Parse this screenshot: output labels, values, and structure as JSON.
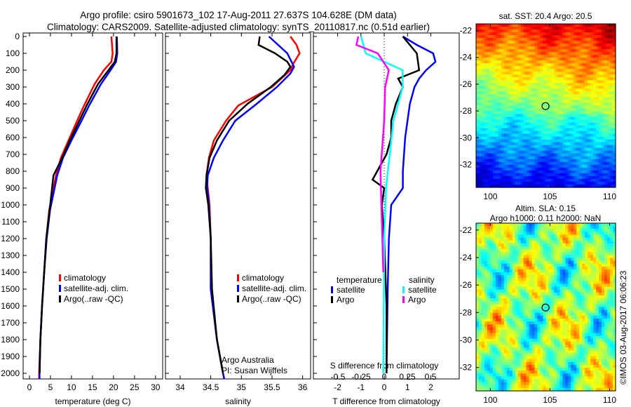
{
  "title_line1": "Argo profile: csiro 5901673_102 17-Aug-2011 27.637S 104.628E (DM data)",
  "title_line2": "Climatology: CARS2009. Satellite-adjusted climatology: synTS_20110817.nc (0.51d earlier)",
  "watermark": "©IMOS 03-Aug-2017 06:06:23",
  "credits": [
    "Argo Australia",
    "PI: Susan Wijffels"
  ],
  "colors": {
    "climatology": "#ff0000",
    "satellite": "#0000ff",
    "argo": "#000000",
    "sal_satellite": "#00ffff",
    "sal_argo": "#ff00ff"
  },
  "chart_data": [
    {
      "type": "line",
      "name": "temperature",
      "xlabel": "temperature (deg C)",
      "ylabel": "depth",
      "xlim": [
        -1.5,
        31.7
      ],
      "ylim": [
        2033,
        -21
      ],
      "xticks": [
        0,
        5,
        10,
        15,
        20,
        25,
        30
      ],
      "yticks": [
        0,
        100,
        200,
        300,
        400,
        500,
        600,
        700,
        800,
        900,
        1000,
        1100,
        1200,
        1300,
        1400,
        1500,
        1600,
        1700,
        1800,
        1900,
        2000
      ],
      "legend": [
        "climatology",
        "satellite-adj. clim.",
        "Argo(..raw -QC)"
      ],
      "legend_placement": "bottom-center",
      "series": [
        {
          "name": "climatology",
          "color": "#ff0000",
          "points": [
            [
              19.5,
              0
            ],
            [
              19.8,
              100
            ],
            [
              19.5,
              150
            ],
            [
              17.7,
              200
            ],
            [
              15.5,
              283
            ],
            [
              13,
              410
            ],
            [
              11,
              520
            ],
            [
              9.3,
              617
            ],
            [
              7.5,
              720
            ],
            [
              6.3,
              825
            ],
            [
              4.7,
              1030
            ],
            [
              4,
              1200
            ],
            [
              3.5,
              1400
            ],
            [
              3,
              1600
            ],
            [
              2.6,
              1800
            ],
            [
              2.3,
              2000
            ],
            [
              2.3,
              2033
            ]
          ]
        },
        {
          "name": "satellite-adj. clim.",
          "color": "#0000ff",
          "points": [
            [
              20.8,
              0
            ],
            [
              20.9,
              100
            ],
            [
              20.6,
              150
            ],
            [
              19.3,
              200
            ],
            [
              17,
              283
            ],
            [
              14.2,
              410
            ],
            [
              12,
              520
            ],
            [
              10,
              617
            ],
            [
              8,
              720
            ],
            [
              6.6,
              825
            ],
            [
              4.9,
              1030
            ],
            [
              4.1,
              1200
            ],
            [
              3.5,
              1400
            ],
            [
              3,
              1600
            ],
            [
              2.6,
              1800
            ],
            [
              2.4,
              2000
            ],
            [
              2.4,
              2033
            ]
          ]
        },
        {
          "name": "Argo(..raw -QC)",
          "color": "#000000",
          "points": [
            [
              20.7,
              0
            ],
            [
              20.7,
              100
            ],
            [
              20.3,
              150
            ],
            [
              18.8,
              200
            ],
            [
              16.3,
              283
            ],
            [
              13.6,
              410
            ],
            [
              11.5,
              520
            ],
            [
              9.6,
              617
            ],
            [
              7.8,
              720
            ],
            [
              5.7,
              825
            ],
            [
              4.8,
              1030
            ],
            [
              4,
              1200
            ],
            [
              3.5,
              1400
            ],
            [
              3,
              1600
            ],
            [
              2.6,
              1800
            ],
            [
              2.4,
              2000
            ]
          ]
        }
      ]
    },
    {
      "type": "line",
      "name": "salinity",
      "xlabel": "salinity",
      "xlim": [
        33.76,
        36.13
      ],
      "ylim": [
        2033,
        -21
      ],
      "xticks": [
        34,
        34.5,
        35,
        35.5,
        36
      ],
      "legend": [
        "climatology",
        "satellite-adj. clim.",
        "Argo(..raw -QC)"
      ],
      "legend_placement": "bottom-right",
      "series": [
        {
          "name": "climatology",
          "color": "#ff0000",
          "points": [
            [
              35.8,
              0
            ],
            [
              35.9,
              50
            ],
            [
              35.95,
              100
            ],
            [
              35.85,
              160
            ],
            [
              35.8,
              200
            ],
            [
              35.5,
              300
            ],
            [
              34.95,
              410
            ],
            [
              34.75,
              500
            ],
            [
              34.55,
              617
            ],
            [
              34.47,
              720
            ],
            [
              34.43,
              825
            ],
            [
              34.45,
              900
            ],
            [
              34.48,
              1000
            ],
            [
              34.5,
              1200
            ],
            [
              34.5,
              1500
            ],
            [
              34.6,
              1800
            ],
            [
              34.7,
              2000
            ],
            [
              34.72,
              2033
            ]
          ]
        },
        {
          "name": "satellite-adj. clim.",
          "color": "#0000ff",
          "points": [
            [
              35.45,
              0
            ],
            [
              35.6,
              50
            ],
            [
              35.75,
              100
            ],
            [
              35.86,
              180
            ],
            [
              35.8,
              220
            ],
            [
              35.58,
              300
            ],
            [
              35.25,
              400
            ],
            [
              34.9,
              500
            ],
            [
              34.7,
              617
            ],
            [
              34.55,
              720
            ],
            [
              34.45,
              825
            ],
            [
              34.44,
              900
            ],
            [
              34.47,
              1000
            ],
            [
              34.5,
              1200
            ],
            [
              34.5,
              1500
            ],
            [
              34.6,
              1800
            ],
            [
              34.7,
              2000
            ],
            [
              34.72,
              2033
            ]
          ]
        },
        {
          "name": "Argo(..raw -QC)",
          "color": "#000000",
          "points": [
            [
              35.3,
              0
            ],
            [
              35.28,
              50
            ],
            [
              35.55,
              100
            ],
            [
              35.75,
              150
            ],
            [
              35.8,
              180
            ],
            [
              35.7,
              230
            ],
            [
              35.48,
              300
            ],
            [
              35.1,
              400
            ],
            [
              34.8,
              500
            ],
            [
              34.6,
              617
            ],
            [
              34.48,
              720
            ],
            [
              34.43,
              825
            ],
            [
              34.42,
              900
            ],
            [
              34.46,
              1000
            ],
            [
              34.5,
              1200
            ],
            [
              34.52,
              1500
            ],
            [
              34.6,
              1800
            ],
            [
              34.7,
              2000
            ]
          ]
        }
      ]
    },
    {
      "type": "line",
      "name": "difference",
      "xlabel": "T difference from climatology",
      "x2label": "S difference from climatology",
      "xlim": [
        -3.04,
        3.22
      ],
      "ylim": [
        2033,
        -21
      ],
      "xticks": [
        -2,
        -1,
        0,
        1,
        2
      ],
      "x2ticks": [
        -0.5,
        -0.25,
        0,
        0.25,
        0.5
      ],
      "legend_headers": [
        "temperature",
        "salinity"
      ],
      "legend": [
        "satellite",
        "Argo",
        "satellite",
        "Argo"
      ],
      "legend_placement": "bottom-center",
      "series": [
        {
          "name": "temperature satellite",
          "axis": "T",
          "color": "#0000ff",
          "points": [
            [
              0.8,
              0
            ],
            [
              1.4,
              50
            ],
            [
              2.1,
              100
            ],
            [
              2.2,
              150
            ],
            [
              1.8,
              200
            ],
            [
              1.5,
              250
            ],
            [
              1.3,
              300
            ],
            [
              1.1,
              400
            ],
            [
              0.9,
              600
            ],
            [
              0.8,
              800
            ],
            [
              0.8,
              900
            ],
            [
              0.3,
              1000
            ],
            [
              0.2,
              1200
            ],
            [
              0.15,
              1500
            ],
            [
              0.1,
              2000
            ]
          ]
        },
        {
          "name": "temperature Argo",
          "axis": "T",
          "color": "#000000",
          "points": [
            [
              0.8,
              0
            ],
            [
              1.4,
              100
            ],
            [
              1.5,
              200
            ],
            [
              0.6,
              250
            ],
            [
              0.8,
              300
            ],
            [
              0.5,
              400
            ],
            [
              0.3,
              500
            ],
            [
              0.3,
              600
            ],
            [
              0.1,
              700
            ],
            [
              -0.3,
              800
            ],
            [
              -0.5,
              850
            ],
            [
              0,
              900
            ],
            [
              -0.1,
              1000
            ],
            [
              0,
              1200
            ],
            [
              0.1,
              1600
            ],
            [
              0.1,
              2000
            ]
          ]
        },
        {
          "name": "salinity satellite",
          "axis": "S",
          "color": "#00ffff",
          "points": [
            [
              -0.25,
              0
            ],
            [
              -0.2,
              100
            ],
            [
              0.2,
              200
            ],
            [
              0.2,
              300
            ],
            [
              0.1,
              500
            ],
            [
              0.06,
              700
            ],
            [
              0.02,
              900
            ],
            [
              0,
              1200
            ],
            [
              -0.01,
              2000
            ]
          ]
        },
        {
          "name": "salinity Argo",
          "axis": "S",
          "color": "#ff00ff",
          "points": [
            [
              -0.28,
              0
            ],
            [
              -0.3,
              50
            ],
            [
              -0.07,
              100
            ],
            [
              0.05,
              200
            ],
            [
              0.01,
              300
            ],
            [
              0,
              500
            ],
            [
              -0.04,
              800
            ],
            [
              -0.03,
              1000
            ],
            [
              -0.01,
              1400
            ]
          ]
        }
      ]
    },
    {
      "type": "heatmap",
      "name": "sst-map",
      "title": "sat. SST: 20.4 Argo: 20.5",
      "xlim": [
        98.8,
        110.5
      ],
      "ylim": [
        -33.7,
        -21.5
      ],
      "xticks": [
        100,
        105,
        110
      ],
      "yticks": [
        -22,
        -24,
        -26,
        -28,
        -30,
        -32
      ],
      "marker": [
        104.628,
        -27.637
      ]
    },
    {
      "type": "heatmap",
      "name": "sla-map",
      "title": [
        "Altim. SLA: 0.15",
        "Argo h1000: 0.11 h2000: NaN"
      ],
      "xlim": [
        98.8,
        110.5
      ],
      "ylim": [
        -33.7,
        -21.5
      ],
      "xticks": [
        100,
        105,
        110
      ],
      "yticks": [
        -22,
        -24,
        -26,
        -28,
        -30,
        -32
      ],
      "marker": [
        104.628,
        -27.637
      ]
    }
  ]
}
